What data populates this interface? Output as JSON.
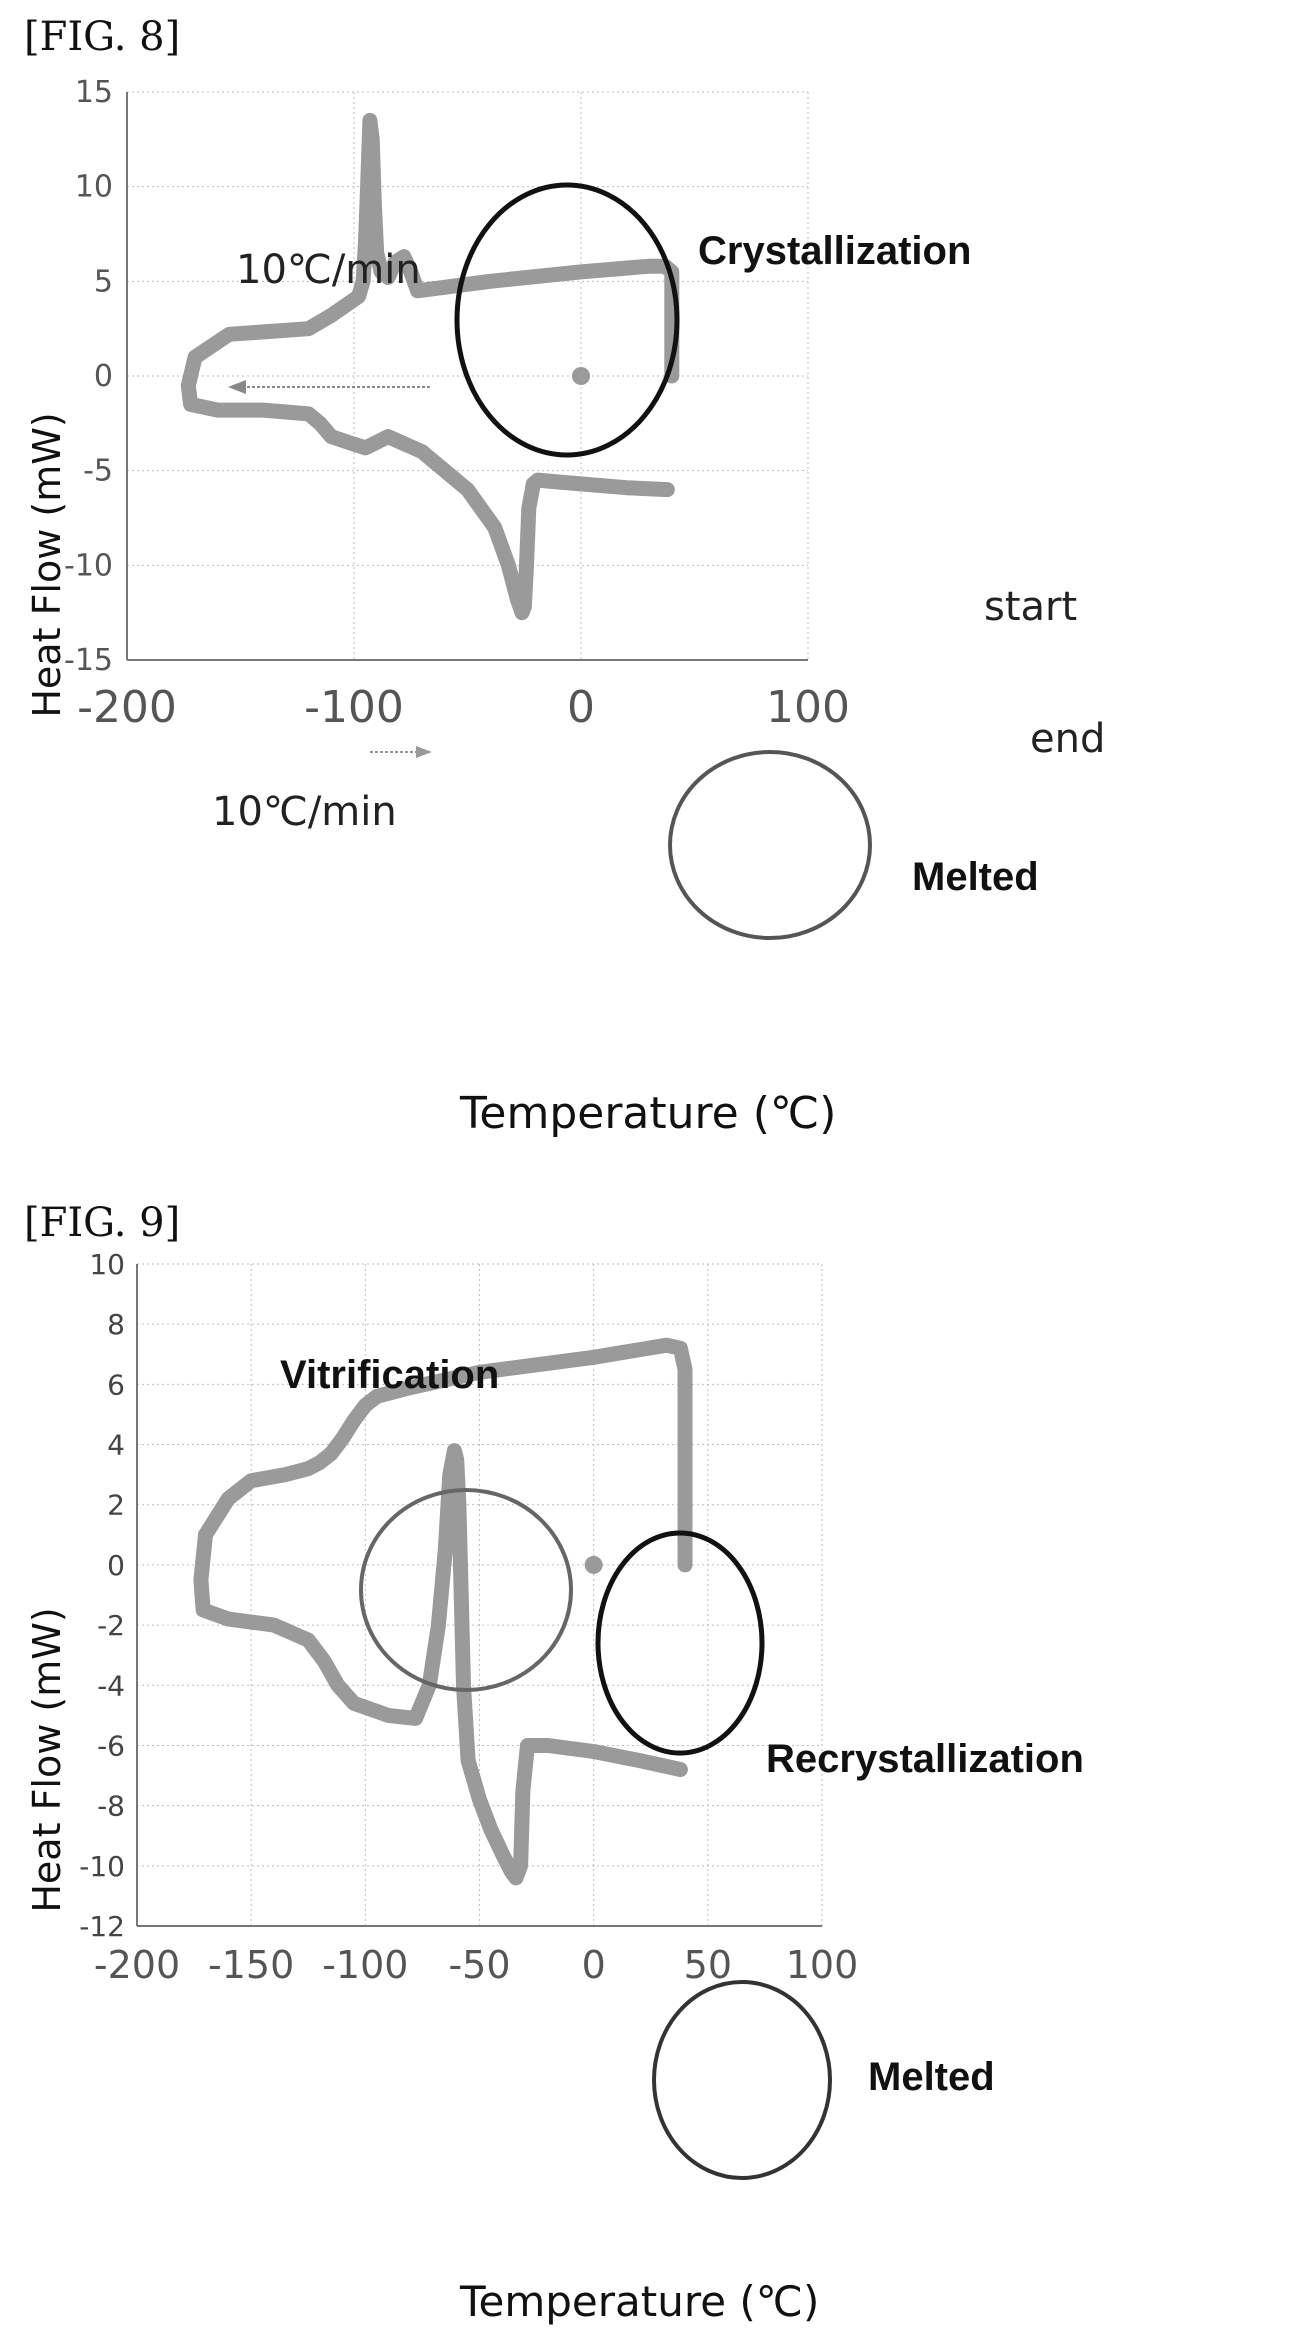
{
  "figures": {
    "fig8": {
      "label": "[FIG. 8]"
    },
    "fig9": {
      "label": "[FIG. 9]"
    }
  },
  "chart_data": [
    {
      "type": "line",
      "xlabel": "Temperature (℃)",
      "ylabel": "Heat Flow (mW)",
      "xlim": [
        -200,
        100
      ],
      "ylim": [
        -15,
        15
      ],
      "xticks": [
        -200,
        -100,
        0,
        100
      ],
      "yticks": [
        15,
        10,
        5,
        0,
        -5,
        -10,
        -15
      ],
      "grid": true,
      "annotations": {
        "crystallization": "Crystallization",
        "melted": "Melted",
        "start": "start",
        "end": "end",
        "rate_cooling": "10℃/min",
        "rate_heating": "10℃/min"
      },
      "points": [
        [
          0,
          0
        ]
      ],
      "series": [
        {
          "x": [
            40,
            40,
            37,
            30,
            0,
            -40,
            -72,
            -75,
            -78,
            -82,
            -85,
            -88,
            -90,
            -91,
            -92,
            -93,
            -94,
            -95,
            -96,
            -98,
            -110,
            -120,
            -155,
            -170,
            -173,
            -172,
            -160,
            -140,
            -120,
            -115,
            -110,
            -100,
            -95,
            -90,
            -85,
            -70,
            -50,
            -38,
            -32,
            -28,
            -26,
            -25,
            -24,
            -23,
            -21,
            -19,
            -10,
            0,
            20,
            38
          ],
          "y": [
            0,
            5.5,
            5.8,
            5.8,
            5.5,
            5.0,
            4.5,
            5.5,
            6.3,
            6.0,
            5.2,
            5.5,
            6.5,
            9,
            12.5,
            13.5,
            10,
            7,
            5,
            4.2,
            3.2,
            2.5,
            2.2,
            1.0,
            -0.5,
            -1.5,
            -1.8,
            -1.8,
            -2.0,
            -2.5,
            -3.2,
            -3.6,
            -3.8,
            -3.5,
            -3.2,
            -4.0,
            -6.0,
            -8.0,
            -10.0,
            -11.8,
            -12.5,
            -12.2,
            -10,
            -7,
            -5.7,
            -5.5,
            -5.6,
            -5.7,
            -5.9,
            -6.0
          ]
        }
      ]
    },
    {
      "type": "line",
      "xlabel": "Temperature (℃)",
      "ylabel": "Heat Flow (mW)",
      "xlim": [
        -200,
        100
      ],
      "ylim": [
        -12,
        10
      ],
      "xticks": [
        -200,
        -150,
        -100,
        -50,
        0,
        50,
        100
      ],
      "yticks": [
        10,
        8,
        6,
        4,
        2,
        0,
        -2,
        -4,
        -6,
        -8,
        -10,
        -12
      ],
      "grid": true,
      "annotations": {
        "vitrification": "Vitrification",
        "recrystallization": "Recrystallization",
        "melted": "Melted"
      },
      "points": [
        [
          0,
          0
        ]
      ],
      "series": [
        {
          "x": [
            40,
            40,
            38,
            32,
            0,
            -50,
            -80,
            -95,
            -100,
            -105,
            -110,
            -115,
            -120,
            -125,
            -135,
            -150,
            -160,
            -170,
            -172,
            -171,
            -160,
            -140,
            -125,
            -118,
            -112,
            -105,
            -90,
            -78,
            -72,
            -68,
            -65,
            -63,
            -61,
            -60,
            -59,
            -58,
            -57,
            -55,
            -50,
            -45,
            -40,
            -36,
            -34,
            -32,
            -31,
            -29,
            -20,
            0,
            20,
            38
          ],
          "y": [
            0,
            6.5,
            7.2,
            7.3,
            6.9,
            6.4,
            5.9,
            5.6,
            5.3,
            4.8,
            4.2,
            3.7,
            3.4,
            3.2,
            3.0,
            2.8,
            2.2,
            1.0,
            -0.5,
            -1.5,
            -1.8,
            -2.0,
            -2.5,
            -3.2,
            -4.0,
            -4.6,
            -5.0,
            -5.1,
            -4.0,
            -2.0,
            0.5,
            3.0,
            3.8,
            3.5,
            2.0,
            -1.0,
            -4.0,
            -6.5,
            -7.8,
            -8.8,
            -9.6,
            -10.2,
            -10.4,
            -10.0,
            -7.5,
            -6.0,
            -6.0,
            -6.2,
            -6.5,
            -6.8
          ]
        }
      ]
    }
  ]
}
